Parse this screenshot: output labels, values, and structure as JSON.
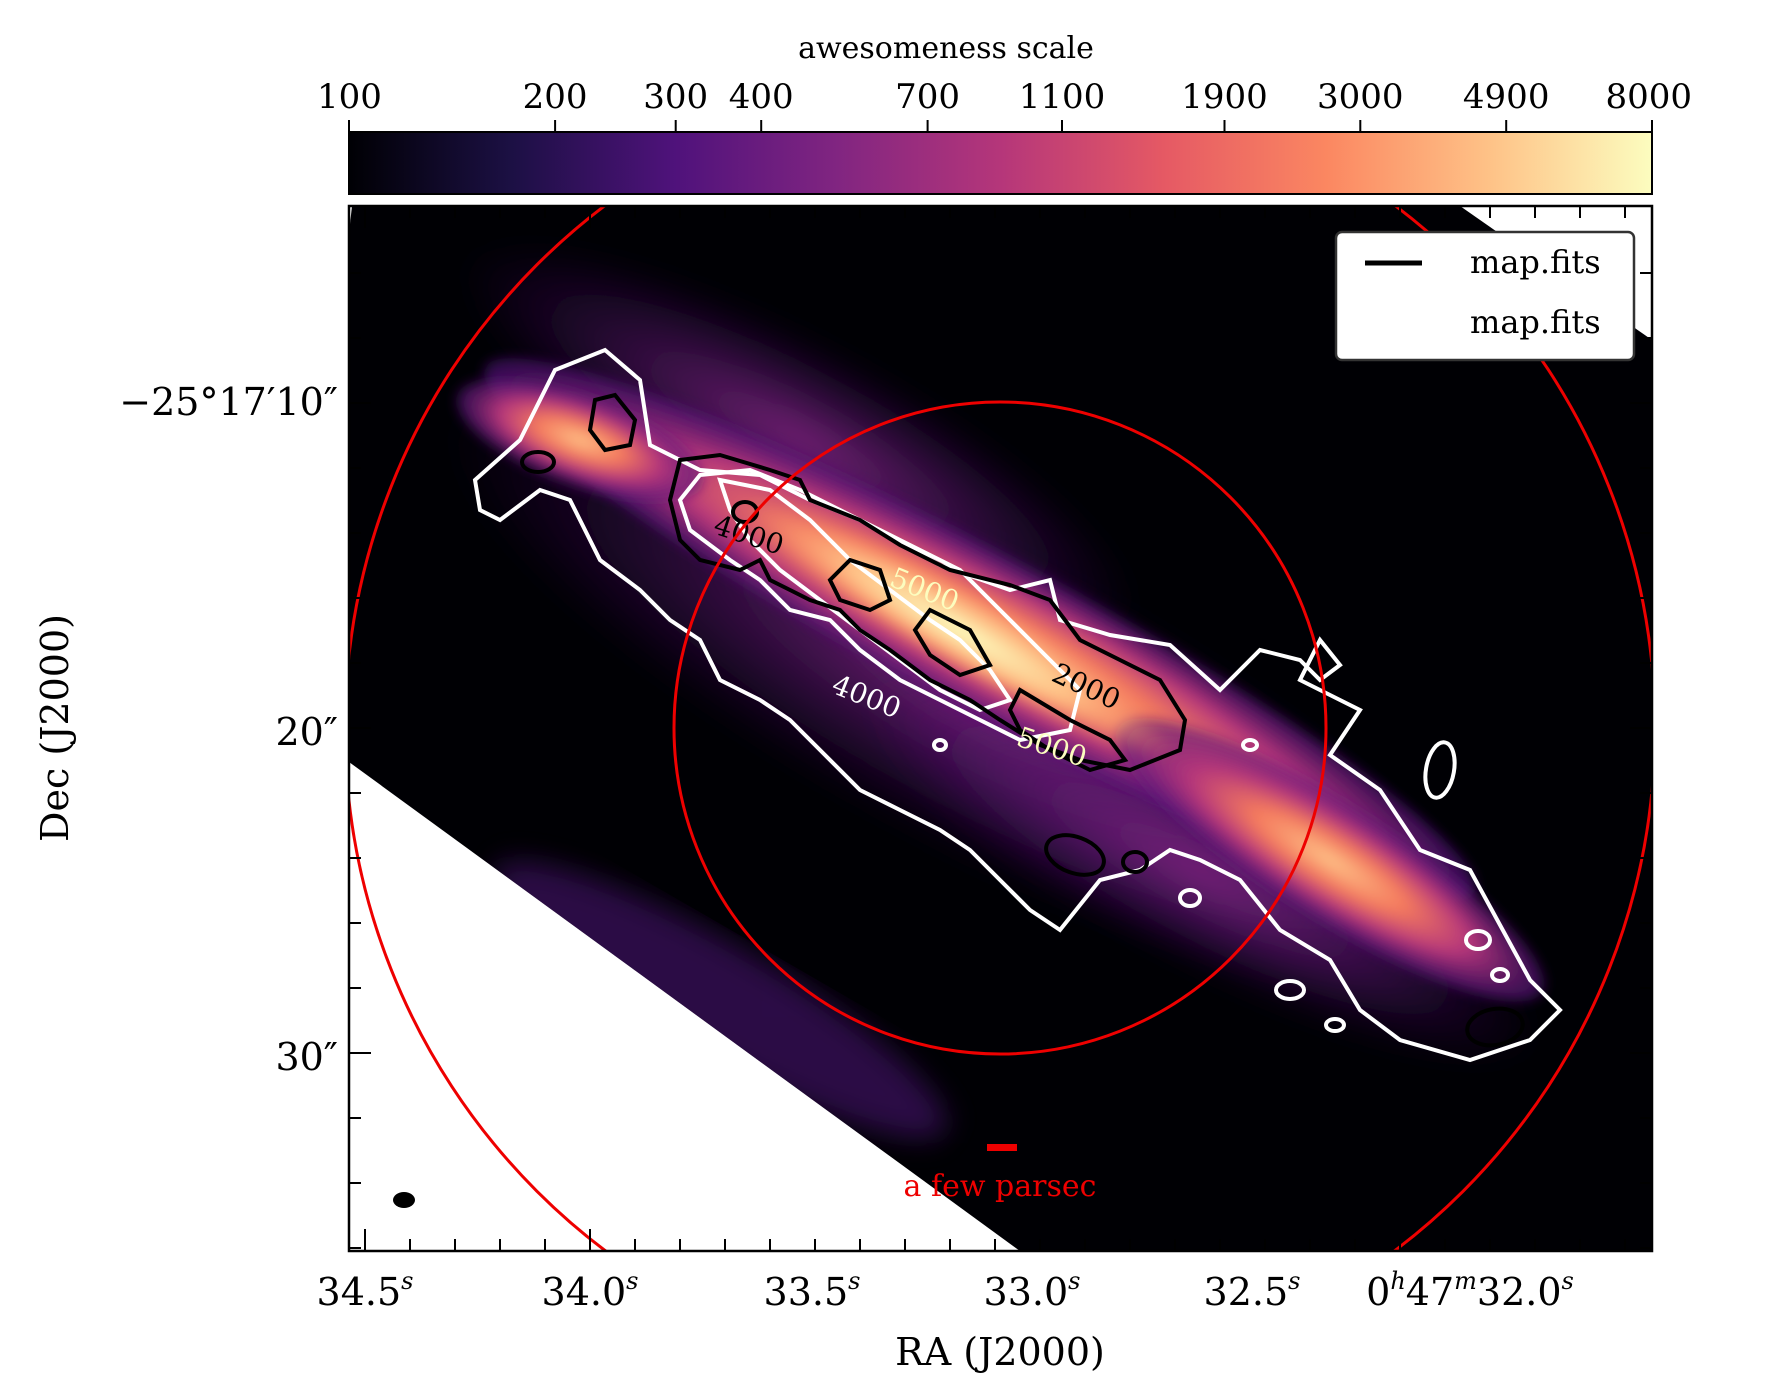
{
  "chart_data": {
    "type": "heatmap",
    "colorbar": {
      "label": "awesomeness scale",
      "ticks": [
        {
          "value": 100,
          "label": "100"
        },
        {
          "value": 200,
          "label": "200"
        },
        {
          "value": 300,
          "label": "300"
        },
        {
          "value": 400,
          "label": "400"
        },
        {
          "value": 700,
          "label": "700"
        },
        {
          "value": 1100,
          "label": "1100"
        },
        {
          "value": 1900,
          "label": "1900"
        },
        {
          "value": 3000,
          "label": "3000"
        },
        {
          "value": 4900,
          "label": "4900"
        },
        {
          "value": 8000,
          "label": "8000"
        }
      ],
      "range": [
        100,
        8000
      ],
      "scale": "log",
      "colormap": "magma",
      "colors": [
        "#000004",
        "#1c1044",
        "#4f127b",
        "#812581",
        "#b5367a",
        "#e55964",
        "#fb8761",
        "#fec287",
        "#fcfdbf"
      ]
    },
    "xlabel": "RA (J2000)",
    "ylabel": "Dec (J2000)",
    "x_ticks": [
      {
        "base": "34.5",
        "sup": "s"
      },
      {
        "base": "34.0",
        "sup": "s"
      },
      {
        "base": "33.5",
        "sup": "s"
      },
      {
        "base": "33.0",
        "sup": "s"
      },
      {
        "base": "32.5",
        "sup": "s"
      },
      {
        "base": "0",
        "sup": "h",
        "base2": "47",
        "sup2": "m",
        "base3": "32.0",
        "sup3": "s"
      }
    ],
    "y_ticks": [
      {
        "label": "−25°17′10″"
      },
      {
        "label": "20″"
      },
      {
        "label": "30″"
      }
    ],
    "contours": {
      "black_levels": [
        2000,
        5000
      ],
      "white_levels": [
        1000,
        2000,
        4000,
        5000
      ],
      "labels": [
        "4000",
        "5000",
        "2000",
        "4000",
        "5000"
      ]
    },
    "legend": {
      "placement": "top-right",
      "entries": [
        {
          "label": "map.fits",
          "color": "#000000"
        },
        {
          "label": "map.fits",
          "color": "#ffffff"
        }
      ]
    },
    "scalebar": {
      "label": "a few parsec",
      "color": "#ee0000"
    },
    "circles": {
      "color": "#ee0000",
      "count": 2
    }
  }
}
